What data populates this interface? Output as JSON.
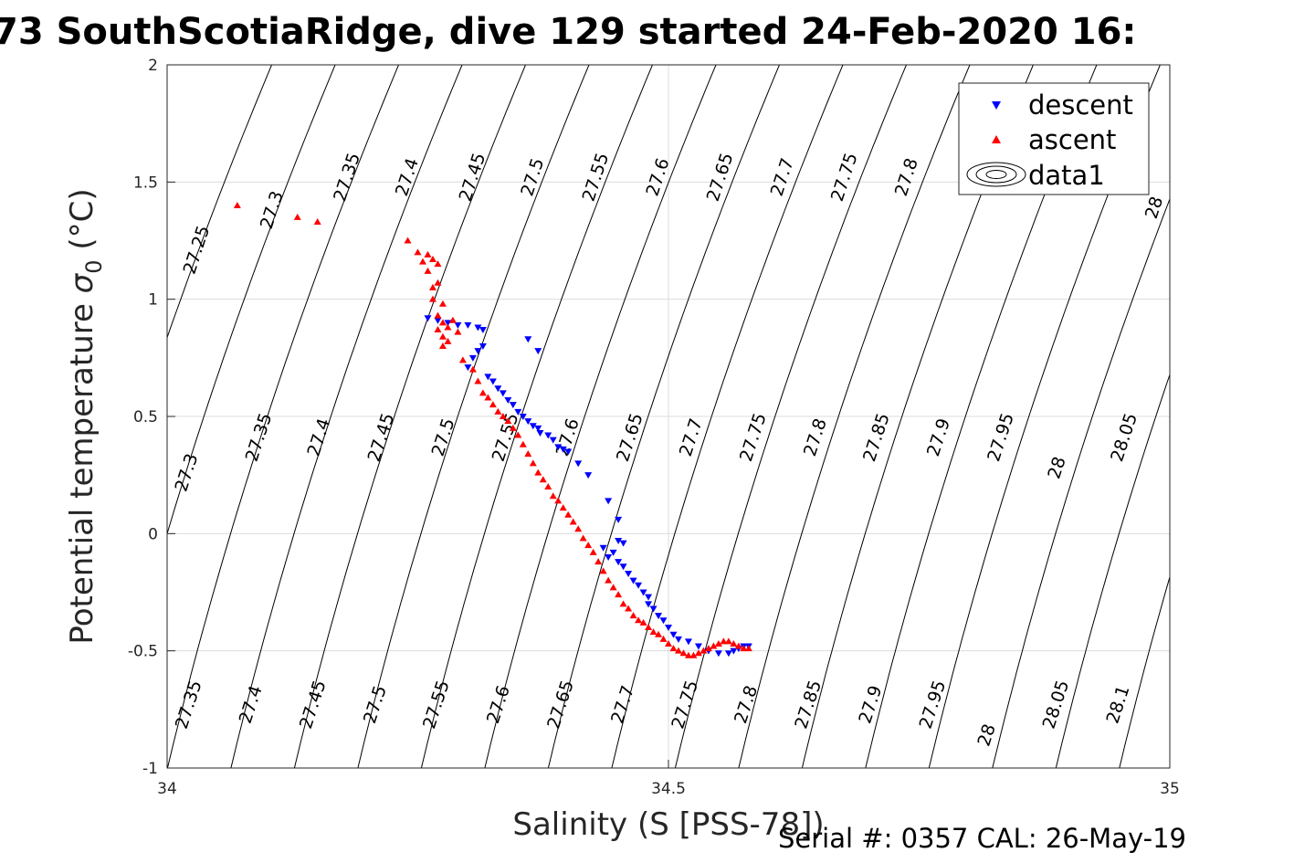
{
  "title": "73 SouthScotiaRidge, dive 129 started 24-Feb-2020 16:",
  "serial_text": "Serial #: 0357  CAL: 26-May-19",
  "colors": {
    "descent": "#0000ff",
    "ascent": "#ff0000",
    "contour": "#000000",
    "grid": "#dcdcdc"
  },
  "chart_data": {
    "type": "scatter",
    "title": "73 SouthScotiaRidge, dive 129 started 24-Feb-2020 16:",
    "xlabel": "Salinity (S [PSS-78])",
    "ylabel_main": "Potential temperature ",
    "ylabel_sym": "σ",
    "ylabel_sub": "0",
    "ylabel_unit": " (°C)",
    "xlim": [
      34,
      35
    ],
    "ylim": [
      -1,
      2
    ],
    "xticks": [
      34,
      34.5,
      35
    ],
    "xtick_labels": [
      "34",
      "34.5",
      "35"
    ],
    "yticks": [
      -1,
      -0.5,
      0,
      0.5,
      1,
      1.5,
      2
    ],
    "ytick_labels": [
      "-1",
      "-0.5",
      "0",
      "0.5",
      "1",
      "1.5",
      "2"
    ],
    "grid": true,
    "legend": {
      "position": "top-right",
      "entries": [
        {
          "label": "descent",
          "marker": "triangle-down",
          "color": "#0000ff"
        },
        {
          "label": "ascent",
          "marker": "triangle-up",
          "color": "#ff0000"
        },
        {
          "label": "data1",
          "marker": "contour"
        }
      ]
    },
    "isopycnals": {
      "levels": [
        27.25,
        27.3,
        27.35,
        27.4,
        27.45,
        27.5,
        27.55,
        27.6,
        27.65,
        27.7,
        27.75,
        27.8,
        27.85,
        27.9,
        27.95,
        28,
        28.05,
        28.1
      ],
      "labels": [
        {
          "text": "27.25",
          "s": 34.03,
          "t": 1.21
        },
        {
          "text": "27.3",
          "s": 34.105,
          "t": 1.38
        },
        {
          "text": "27.35",
          "s": 34.18,
          "t": 1.52
        },
        {
          "text": "27.4",
          "s": 34.24,
          "t": 1.52
        },
        {
          "text": "27.45",
          "s": 34.305,
          "t": 1.52
        },
        {
          "text": "27.5",
          "s": 34.365,
          "t": 1.52
        },
        {
          "text": "27.55",
          "s": 34.428,
          "t": 1.52
        },
        {
          "text": "27.6",
          "s": 34.49,
          "t": 1.52
        },
        {
          "text": "27.65",
          "s": 34.552,
          "t": 1.52
        },
        {
          "text": "27.7",
          "s": 34.614,
          "t": 1.52
        },
        {
          "text": "27.75",
          "s": 34.676,
          "t": 1.52
        },
        {
          "text": "27.8",
          "s": 34.738,
          "t": 1.52
        },
        {
          "text": "28",
          "s": 34.985,
          "t": 1.39
        },
        {
          "text": "27.3",
          "s": 34.02,
          "t": 0.26
        },
        {
          "text": "27.35",
          "s": 34.092,
          "t": 0.41
        },
        {
          "text": "27.4",
          "s": 34.152,
          "t": 0.41
        },
        {
          "text": "27.45",
          "s": 34.214,
          "t": 0.41
        },
        {
          "text": "27.5",
          "s": 34.276,
          "t": 0.41
        },
        {
          "text": "27.55",
          "s": 34.338,
          "t": 0.41
        },
        {
          "text": "27.6",
          "s": 34.4,
          "t": 0.41
        },
        {
          "text": "27.65",
          "s": 34.462,
          "t": 0.41
        },
        {
          "text": "27.7",
          "s": 34.523,
          "t": 0.41
        },
        {
          "text": "27.75",
          "s": 34.585,
          "t": 0.41
        },
        {
          "text": "27.8",
          "s": 34.647,
          "t": 0.41
        },
        {
          "text": "27.85",
          "s": 34.708,
          "t": 0.41
        },
        {
          "text": "27.9",
          "s": 34.77,
          "t": 0.41
        },
        {
          "text": "27.95",
          "s": 34.832,
          "t": 0.41
        },
        {
          "text": "28",
          "s": 34.888,
          "t": 0.28
        },
        {
          "text": "28.05",
          "s": 34.955,
          "t": 0.41
        },
        {
          "text": "27.35",
          "s": 34.022,
          "t": -0.73
        },
        {
          "text": "27.4",
          "s": 34.084,
          "t": -0.73
        },
        {
          "text": "27.45",
          "s": 34.146,
          "t": -0.73
        },
        {
          "text": "27.5",
          "s": 34.208,
          "t": -0.73
        },
        {
          "text": "27.55",
          "s": 34.269,
          "t": -0.73
        },
        {
          "text": "27.6",
          "s": 34.331,
          "t": -0.73
        },
        {
          "text": "27.65",
          "s": 34.393,
          "t": -0.73
        },
        {
          "text": "27.7",
          "s": 34.455,
          "t": -0.73
        },
        {
          "text": "27.75",
          "s": 34.517,
          "t": -0.73
        },
        {
          "text": "27.8",
          "s": 34.578,
          "t": -0.73
        },
        {
          "text": "27.85",
          "s": 34.64,
          "t": -0.73
        },
        {
          "text": "27.9",
          "s": 34.702,
          "t": -0.73
        },
        {
          "text": "27.95",
          "s": 34.764,
          "t": -0.73
        },
        {
          "text": "28",
          "s": 34.818,
          "t": -0.86
        },
        {
          "text": "28.05",
          "s": 34.887,
          "t": -0.73
        },
        {
          "text": "28.1",
          "s": 34.949,
          "t": -0.73
        }
      ]
    },
    "series": [
      {
        "name": "descent",
        "marker": "triangle-down",
        "s": [
          34.26,
          34.27,
          34.28,
          34.29,
          34.3,
          34.31,
          34.315,
          34.3,
          34.305,
          34.31,
          34.315,
          34.32,
          34.325,
          34.33,
          34.335,
          34.34,
          34.345,
          34.35,
          34.355,
          34.36,
          34.365,
          34.37,
          34.372,
          34.38,
          34.36,
          34.37,
          34.385,
          34.39,
          34.395,
          34.4,
          34.41,
          34.42,
          34.44,
          34.45,
          34.435,
          34.445,
          34.45,
          34.455,
          34.44,
          34.45,
          34.455,
          34.46,
          34.465,
          34.47,
          34.475,
          34.48,
          34.48,
          34.485,
          34.49,
          34.495,
          34.5,
          34.505,
          34.51,
          34.52,
          34.53,
          34.54,
          34.55,
          34.56,
          34.565,
          34.57,
          34.575,
          34.58
        ],
        "t": [
          0.92,
          0.91,
          0.9,
          0.89,
          0.89,
          0.88,
          0.87,
          0.71,
          0.75,
          0.78,
          0.8,
          0.67,
          0.65,
          0.62,
          0.6,
          0.57,
          0.55,
          0.52,
          0.5,
          0.48,
          0.46,
          0.45,
          0.43,
          0.42,
          0.83,
          0.78,
          0.4,
          0.37,
          0.36,
          0.35,
          0.3,
          0.25,
          0.14,
          0.06,
          -0.06,
          -0.08,
          -0.03,
          -0.04,
          -0.1,
          -0.12,
          -0.14,
          -0.17,
          -0.2,
          -0.22,
          -0.25,
          -0.27,
          -0.3,
          -0.32,
          -0.35,
          -0.37,
          -0.4,
          -0.43,
          -0.45,
          -0.46,
          -0.48,
          -0.5,
          -0.51,
          -0.51,
          -0.5,
          -0.49,
          -0.48,
          -0.48
        ]
      },
      {
        "name": "ascent",
        "marker": "triangle-up",
        "s": [
          34.07,
          34.13,
          34.15,
          34.24,
          34.25,
          34.255,
          34.26,
          34.265,
          34.26,
          34.27,
          34.265,
          34.27,
          34.265,
          34.275,
          34.27,
          34.275,
          34.28,
          34.285,
          34.29,
          34.28,
          34.275,
          34.27,
          34.275,
          34.295,
          34.305,
          34.31,
          34.315,
          34.32,
          34.325,
          34.33,
          34.335,
          34.34,
          34.345,
          34.35,
          34.355,
          34.36,
          34.365,
          34.37,
          34.375,
          34.38,
          34.385,
          34.39,
          34.395,
          34.4,
          34.405,
          34.41,
          34.415,
          34.42,
          34.425,
          34.43,
          34.435,
          34.44,
          34.445,
          34.45,
          34.455,
          34.46,
          34.465,
          34.47,
          34.475,
          34.48,
          34.485,
          34.49,
          34.495,
          34.5,
          34.505,
          34.51,
          34.515,
          34.52,
          34.525,
          34.53,
          34.535,
          34.54,
          34.545,
          34.55,
          34.555,
          34.56,
          34.565,
          34.57,
          34.575,
          34.58
        ],
        "t": [
          1.4,
          1.35,
          1.33,
          1.25,
          1.2,
          1.16,
          1.19,
          1.17,
          1.12,
          1.15,
          1.05,
          1.07,
          1.0,
          0.98,
          0.93,
          0.9,
          0.88,
          0.91,
          0.86,
          0.82,
          0.8,
          0.87,
          0.84,
          0.74,
          0.7,
          0.65,
          0.6,
          0.58,
          0.55,
          0.52,
          0.5,
          0.48,
          0.45,
          0.42,
          0.38,
          0.34,
          0.3,
          0.26,
          0.23,
          0.2,
          0.16,
          0.14,
          0.11,
          0.08,
          0.05,
          0.02,
          -0.02,
          -0.05,
          -0.08,
          -0.12,
          -0.16,
          -0.2,
          -0.23,
          -0.26,
          -0.3,
          -0.32,
          -0.35,
          -0.37,
          -0.38,
          -0.4,
          -0.42,
          -0.43,
          -0.45,
          -0.47,
          -0.49,
          -0.5,
          -0.51,
          -0.52,
          -0.52,
          -0.51,
          -0.5,
          -0.49,
          -0.48,
          -0.47,
          -0.46,
          -0.46,
          -0.47,
          -0.48,
          -0.49,
          -0.49
        ]
      }
    ]
  }
}
